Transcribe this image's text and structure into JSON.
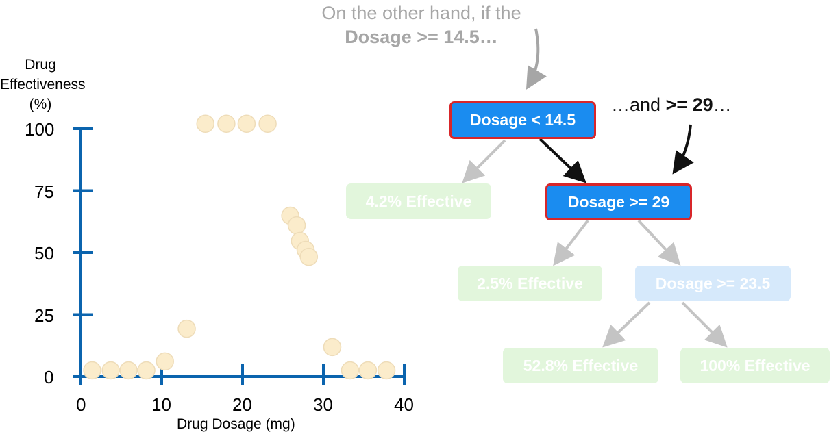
{
  "annotations": {
    "top_line1": "On the other hand, if the",
    "top_line2": "Dosage >= 14.5…",
    "right_prefix": "…and ",
    "right_bold": ">= 29",
    "right_suffix": "…"
  },
  "tree": {
    "root": "Dosage < 14.5",
    "left_leaf": "4.2% Effective",
    "node2": "Dosage >= 29",
    "leaf2": "2.5% Effective",
    "node3": "Dosage >= 23.5",
    "leaf3": "52.8% Effective",
    "leaf4": "100% Effective",
    "colors": {
      "active": "#1a8cf0",
      "highlight_border": "#d8262a",
      "leaf_faded": "#e2f6dc",
      "node_faded": "#d6e9fb"
    }
  },
  "chart_data": {
    "type": "scatter",
    "title": "",
    "xlabel": "Drug Dosage (mg)",
    "ylabel": "Drug Effectiveness (%)",
    "ylabel_lines": [
      "Drug",
      "Effectiveness",
      "(%)"
    ],
    "xlim": [
      0,
      40
    ],
    "ylim": [
      0,
      100
    ],
    "xticks": [
      "0",
      "10",
      "20",
      "30",
      "40"
    ],
    "yticks": [
      "0",
      "25",
      "50",
      "75",
      "100"
    ],
    "grid": false,
    "points": [
      [
        1.4,
        2.5
      ],
      [
        3.7,
        2.5
      ],
      [
        5.9,
        2.5
      ],
      [
        8.1,
        2.5
      ],
      [
        10.4,
        6.1
      ],
      [
        13.1,
        19.3
      ],
      [
        15.4,
        102
      ],
      [
        18.0,
        102
      ],
      [
        20.5,
        102
      ],
      [
        23.1,
        102
      ],
      [
        25.9,
        64.9
      ],
      [
        26.7,
        61
      ],
      [
        27.1,
        54.7
      ],
      [
        27.8,
        51.1
      ],
      [
        28.2,
        48.3
      ],
      [
        31.1,
        11.9
      ],
      [
        33.3,
        2.5
      ],
      [
        35.5,
        2.5
      ],
      [
        37.8,
        2.5
      ]
    ],
    "colors": {
      "axis": "#0b64ae",
      "point_fill": "#fbeccb",
      "point_stroke": "#eedcb8"
    }
  }
}
